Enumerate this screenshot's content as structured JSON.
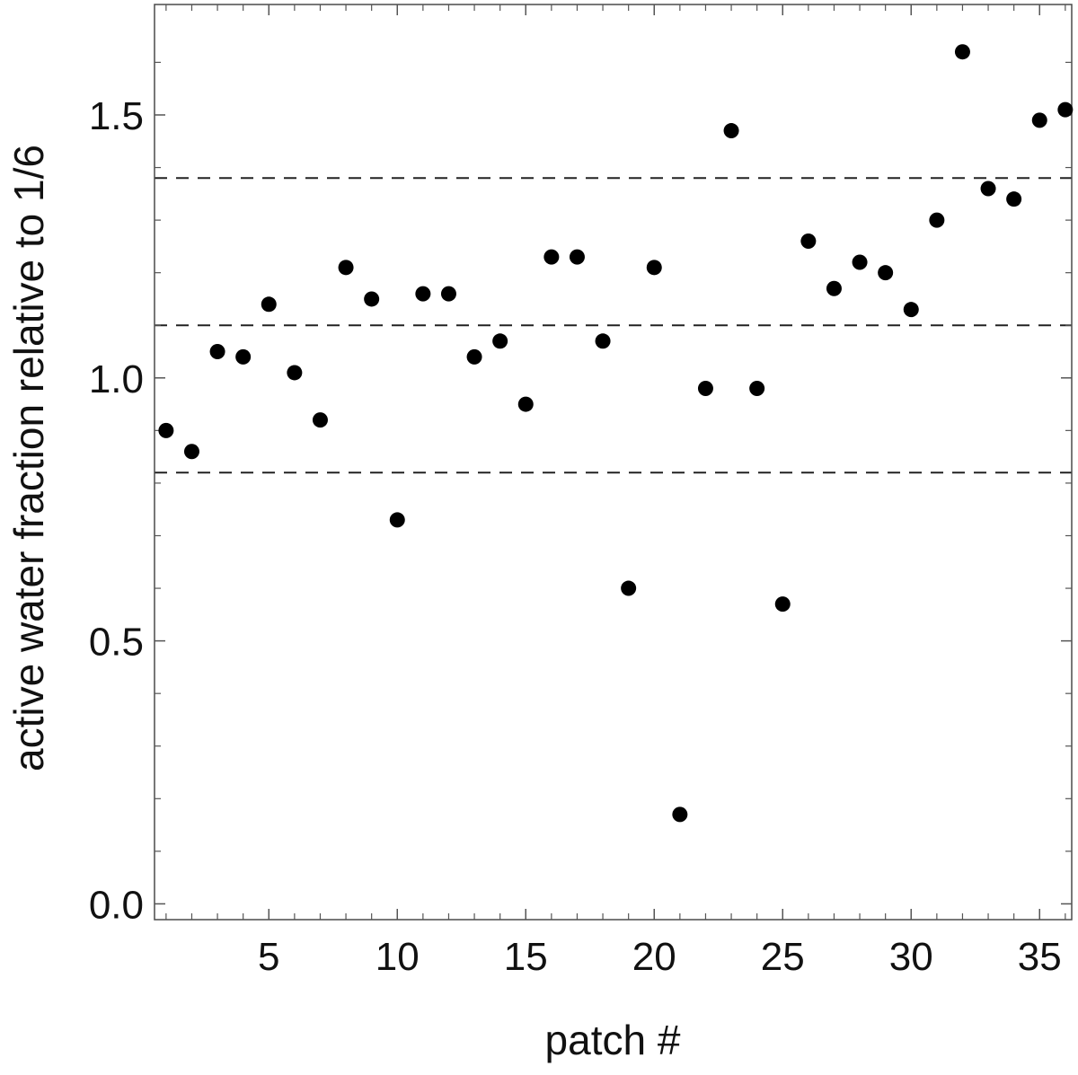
{
  "chart_data": {
    "type": "scatter",
    "title": "",
    "xlabel": "patch #",
    "ylabel": "active water fraction relative to 1/6",
    "xlim": [
      0.55,
      36.25
    ],
    "ylim": [
      -0.03,
      1.71
    ],
    "grid": false,
    "x_ticks": [
      {
        "value": 5,
        "label": "5"
      },
      {
        "value": 10,
        "label": "10"
      },
      {
        "value": 15,
        "label": "15"
      },
      {
        "value": 20,
        "label": "20"
      },
      {
        "value": 25,
        "label": "25"
      },
      {
        "value": 30,
        "label": "30"
      },
      {
        "value": 35,
        "label": "35"
      }
    ],
    "x_minor_ticks": [
      1,
      2,
      3,
      4,
      6,
      7,
      8,
      9,
      11,
      12,
      13,
      14,
      16,
      17,
      18,
      19,
      21,
      22,
      23,
      24,
      26,
      27,
      28,
      29,
      31,
      32,
      33,
      34,
      36
    ],
    "y_ticks": [
      {
        "value": 0.0,
        "label": "0.0"
      },
      {
        "value": 0.5,
        "label": "0.5"
      },
      {
        "value": 1.0,
        "label": "1.0"
      },
      {
        "value": 1.5,
        "label": "1.5"
      }
    ],
    "y_minor_ticks": [
      0.1,
      0.2,
      0.3,
      0.4,
      0.6,
      0.7,
      0.8,
      0.9,
      1.1,
      1.2,
      1.3,
      1.4,
      1.6
    ],
    "reference_lines": [
      1.38,
      1.1,
      0.82
    ],
    "series": [
      {
        "x": [
          1,
          2,
          3,
          4,
          5,
          6,
          7,
          8,
          9,
          10,
          11,
          12,
          13,
          14,
          15,
          16,
          17,
          18,
          19,
          20,
          21,
          22,
          23,
          24,
          25,
          26,
          27,
          28,
          29,
          30,
          31,
          32,
          33,
          34,
          35,
          36
        ],
        "y": [
          0.9,
          0.86,
          1.05,
          1.04,
          1.14,
          1.01,
          0.92,
          1.21,
          1.15,
          0.73,
          1.16,
          1.16,
          1.04,
          1.07,
          0.95,
          1.23,
          1.23,
          1.07,
          0.6,
          1.21,
          0.17,
          0.98,
          1.47,
          0.98,
          0.57,
          1.26,
          1.17,
          1.22,
          1.2,
          1.13,
          1.3,
          1.62,
          1.36,
          1.34,
          1.49,
          1.51
        ]
      }
    ]
  },
  "colors": {
    "points": "#000000",
    "frame": "#4a4a4a",
    "ticks": "#555555",
    "reference_line": "#222222",
    "text": "#111111"
  }
}
